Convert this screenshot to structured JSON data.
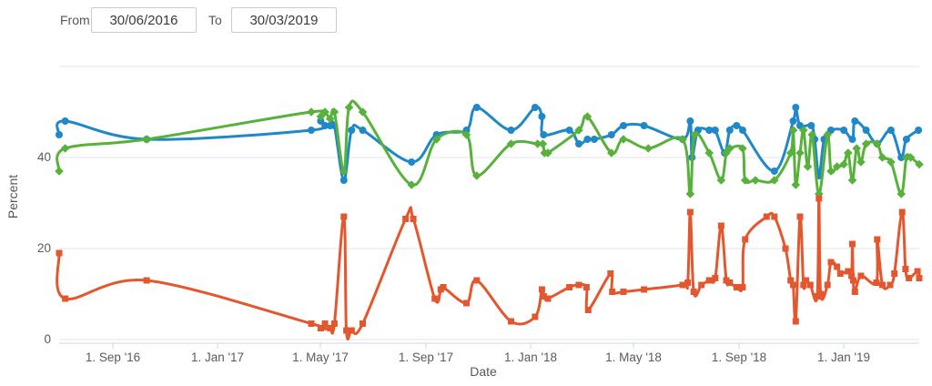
{
  "controls": {
    "from_label": "From",
    "to_label": "To",
    "from_value": "30/06/2016",
    "to_value": "30/03/2019"
  },
  "chart_data": {
    "type": "line",
    "xlabel": "Date",
    "ylabel": "Percent",
    "date_range": [
      "2016-06-30",
      "2019-03-30"
    ],
    "ylim": [
      0,
      62
    ],
    "y_ticks": [
      0,
      20,
      40
    ],
    "y_gridlines": [
      0,
      20,
      40,
      60
    ],
    "grid": true,
    "legend_position": "none",
    "x_ticks": [
      {
        "date": "2016-09-01",
        "label": "1. Sep '16"
      },
      {
        "date": "2017-01-01",
        "label": "1. Jan '17"
      },
      {
        "date": "2017-05-01",
        "label": "1. May '17"
      },
      {
        "date": "2017-09-01",
        "label": "1. Sep '17"
      },
      {
        "date": "2018-01-01",
        "label": "1. Jan '18"
      },
      {
        "date": "2018-05-01",
        "label": "1. May '18"
      },
      {
        "date": "2018-09-01",
        "label": "1. Sep '18"
      },
      {
        "date": "2019-01-01",
        "label": "1. Jan '19"
      }
    ],
    "colors": {
      "grid": "#e6e6e6",
      "axis_line": "#ccd6eb",
      "tick_label": "#5a5b5e",
      "axis_title": "#55565a"
    },
    "series": [
      {
        "name": "blue-series",
        "color": "#1f88c9",
        "marker": "circle",
        "points": [
          [
            "2016-06-30",
            45
          ],
          [
            "2016-07-07",
            48
          ],
          [
            "2016-10-10",
            44
          ],
          [
            "2017-04-20",
            46
          ],
          [
            "2017-05-01",
            48
          ],
          [
            "2017-05-06",
            47
          ],
          [
            "2017-05-12",
            47
          ],
          [
            "2017-05-17",
            47
          ],
          [
            "2017-05-28",
            35
          ],
          [
            "2017-06-06",
            46
          ],
          [
            "2017-06-19",
            46
          ],
          [
            "2017-08-15",
            39
          ],
          [
            "2017-09-13",
            45
          ],
          [
            "2017-10-18",
            46
          ],
          [
            "2017-10-30",
            51
          ],
          [
            "2017-12-09",
            46
          ],
          [
            "2018-01-06",
            51
          ],
          [
            "2018-01-14",
            49
          ],
          [
            "2018-01-16",
            45
          ],
          [
            "2018-02-15",
            46
          ],
          [
            "2018-02-26",
            43
          ],
          [
            "2018-03-08",
            44
          ],
          [
            "2018-03-16",
            44
          ],
          [
            "2018-04-05",
            45
          ],
          [
            "2018-04-19",
            47
          ],
          [
            "2018-05-13",
            47
          ],
          [
            "2018-06-27",
            44
          ],
          [
            "2018-07-06",
            48
          ],
          [
            "2018-07-08",
            40
          ],
          [
            "2018-07-15",
            46
          ],
          [
            "2018-07-28",
            46
          ],
          [
            "2018-08-04",
            46
          ],
          [
            "2018-08-15",
            41
          ],
          [
            "2018-08-21",
            46
          ],
          [
            "2018-08-29",
            47
          ],
          [
            "2018-09-05",
            46
          ],
          [
            "2018-10-12",
            37
          ],
          [
            "2018-11-03",
            48
          ],
          [
            "2018-11-06",
            51
          ],
          [
            "2018-11-11",
            47
          ],
          [
            "2018-11-24",
            47
          ],
          [
            "2018-11-28",
            44
          ],
          [
            "2018-12-03",
            36
          ],
          [
            "2018-12-09",
            44
          ],
          [
            "2018-12-17",
            46
          ],
          [
            "2019-01-01",
            46
          ],
          [
            "2019-01-11",
            44
          ],
          [
            "2019-01-14",
            48
          ],
          [
            "2019-01-27",
            46
          ],
          [
            "2019-02-09",
            43
          ],
          [
            "2019-02-25",
            46
          ],
          [
            "2019-03-09",
            40
          ],
          [
            "2019-03-15",
            44
          ],
          [
            "2019-03-29",
            46
          ]
        ]
      },
      {
        "name": "green-series",
        "color": "#57b13a",
        "marker": "diamond",
        "points": [
          [
            "2016-06-30",
            37
          ],
          [
            "2016-07-07",
            42
          ],
          [
            "2016-10-10",
            44
          ],
          [
            "2017-04-20",
            50
          ],
          [
            "2017-05-01",
            49
          ],
          [
            "2017-05-06",
            50
          ],
          [
            "2017-05-12",
            48.5
          ],
          [
            "2017-05-17",
            50
          ],
          [
            "2017-05-28",
            37
          ],
          [
            "2017-06-03",
            51
          ],
          [
            "2017-06-19",
            50
          ],
          [
            "2017-08-15",
            34
          ],
          [
            "2017-09-13",
            44
          ],
          [
            "2017-10-18",
            45
          ],
          [
            "2017-10-30",
            36
          ],
          [
            "2017-12-09",
            43
          ],
          [
            "2018-01-09",
            43
          ],
          [
            "2018-01-15",
            43
          ],
          [
            "2018-01-17",
            41
          ],
          [
            "2018-01-21",
            41
          ],
          [
            "2018-02-26",
            46
          ],
          [
            "2018-03-08",
            49
          ],
          [
            "2018-04-05",
            41
          ],
          [
            "2018-04-19",
            44
          ],
          [
            "2018-05-18",
            42
          ],
          [
            "2018-06-27",
            44
          ],
          [
            "2018-07-06",
            32
          ],
          [
            "2018-07-11",
            45
          ],
          [
            "2018-07-28",
            41
          ],
          [
            "2018-08-11",
            35
          ],
          [
            "2018-08-17",
            41
          ],
          [
            "2018-08-21",
            42
          ],
          [
            "2018-09-05",
            42
          ],
          [
            "2018-09-08",
            35
          ],
          [
            "2018-09-20",
            35
          ],
          [
            "2018-10-12",
            35
          ],
          [
            "2018-10-31",
            41
          ],
          [
            "2018-11-03",
            46
          ],
          [
            "2018-11-06",
            34
          ],
          [
            "2018-11-11",
            41
          ],
          [
            "2018-11-15",
            46
          ],
          [
            "2018-11-20",
            38
          ],
          [
            "2018-11-25",
            45
          ],
          [
            "2018-12-03",
            32
          ],
          [
            "2018-12-13",
            45
          ],
          [
            "2018-12-17",
            37
          ],
          [
            "2018-12-24",
            38
          ],
          [
            "2019-01-01",
            38.5
          ],
          [
            "2019-01-06",
            41
          ],
          [
            "2019-01-11",
            35
          ],
          [
            "2019-01-16",
            42
          ],
          [
            "2019-01-21",
            39
          ],
          [
            "2019-01-27",
            43
          ],
          [
            "2019-02-09",
            43
          ],
          [
            "2019-02-15",
            40
          ],
          [
            "2019-02-25",
            39
          ],
          [
            "2019-03-09",
            32
          ],
          [
            "2019-03-15",
            40
          ],
          [
            "2019-03-20",
            40
          ],
          [
            "2019-03-30",
            38.5
          ]
        ]
      },
      {
        "name": "orange-series",
        "color": "#e4572e",
        "marker": "square",
        "points": [
          [
            "2016-06-30",
            19
          ],
          [
            "2016-07-07",
            9
          ],
          [
            "2016-10-10",
            13
          ],
          [
            "2017-04-20",
            3.5
          ],
          [
            "2017-05-01",
            2.5
          ],
          [
            "2017-05-06",
            3.5
          ],
          [
            "2017-05-12",
            2.5
          ],
          [
            "2017-05-17",
            3.5
          ],
          [
            "2017-05-28",
            27
          ],
          [
            "2017-05-31",
            2
          ],
          [
            "2017-06-06",
            2
          ],
          [
            "2017-06-19",
            3.5
          ],
          [
            "2017-08-08",
            26.5
          ],
          [
            "2017-08-17",
            26.5
          ],
          [
            "2017-09-11",
            9
          ],
          [
            "2017-09-18",
            11
          ],
          [
            "2017-09-21",
            11.5
          ],
          [
            "2017-10-18",
            8
          ],
          [
            "2017-10-30",
            13
          ],
          [
            "2017-12-09",
            4
          ],
          [
            "2018-01-06",
            5
          ],
          [
            "2018-01-14",
            11
          ],
          [
            "2018-01-16",
            9.5
          ],
          [
            "2018-01-21",
            9
          ],
          [
            "2018-02-15",
            11.5
          ],
          [
            "2018-02-26",
            12
          ],
          [
            "2018-03-07",
            11.5
          ],
          [
            "2018-03-09",
            6.5
          ],
          [
            "2018-04-04",
            14.5
          ],
          [
            "2018-04-06",
            10.5
          ],
          [
            "2018-04-19",
            10.5
          ],
          [
            "2018-05-13",
            11
          ],
          [
            "2018-06-27",
            12
          ],
          [
            "2018-07-03",
            12.5
          ],
          [
            "2018-07-06",
            28
          ],
          [
            "2018-07-10",
            10.5
          ],
          [
            "2018-07-19",
            12
          ],
          [
            "2018-07-28",
            13
          ],
          [
            "2018-08-04",
            13.5
          ],
          [
            "2018-08-11",
            25
          ],
          [
            "2018-08-17",
            13
          ],
          [
            "2018-08-21",
            12.5
          ],
          [
            "2018-08-29",
            11.5
          ],
          [
            "2018-09-05",
            11.5
          ],
          [
            "2018-09-08",
            22
          ],
          [
            "2018-10-03",
            27
          ],
          [
            "2018-10-12",
            27
          ],
          [
            "2018-10-25",
            20
          ],
          [
            "2018-10-31",
            13
          ],
          [
            "2018-11-03",
            12
          ],
          [
            "2018-11-06",
            4
          ],
          [
            "2018-11-11",
            27
          ],
          [
            "2018-11-15",
            12
          ],
          [
            "2018-11-18",
            13
          ],
          [
            "2018-11-23",
            12
          ],
          [
            "2018-12-01",
            9.5
          ],
          [
            "2018-12-03",
            31
          ],
          [
            "2018-12-05",
            10
          ],
          [
            "2018-12-13",
            12
          ],
          [
            "2018-12-17",
            17
          ],
          [
            "2018-12-24",
            16
          ],
          [
            "2018-12-28",
            14.5
          ],
          [
            "2019-01-06",
            15
          ],
          [
            "2019-01-10",
            14
          ],
          [
            "2019-01-11",
            21
          ],
          [
            "2019-01-12",
            13
          ],
          [
            "2019-01-14",
            10.5
          ],
          [
            "2019-01-21",
            14
          ],
          [
            "2019-02-08",
            12.5
          ],
          [
            "2019-02-09",
            22
          ],
          [
            "2019-02-15",
            12
          ],
          [
            "2019-02-24",
            12
          ],
          [
            "2019-03-01",
            14.5
          ],
          [
            "2019-03-10",
            28
          ],
          [
            "2019-03-14",
            15.5
          ],
          [
            "2019-03-18",
            13.5
          ],
          [
            "2019-03-28",
            15
          ],
          [
            "2019-03-30",
            13.5
          ]
        ]
      }
    ]
  }
}
